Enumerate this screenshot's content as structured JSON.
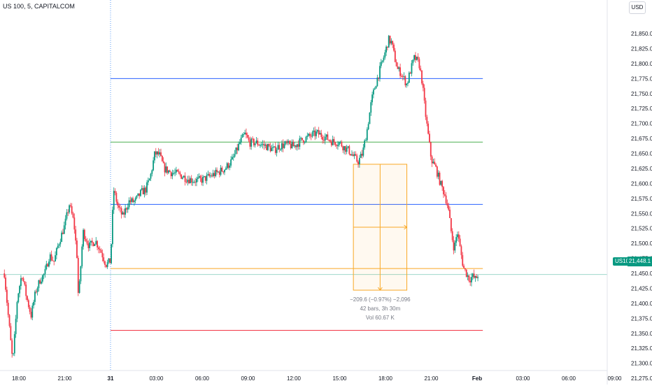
{
  "header": {
    "symbol": "US 100, 5, CAPITALCOM",
    "currency": "USD"
  },
  "chart_data": {
    "type": "candlestick",
    "y_ticks": [
      "21,850.0",
      "21,825.0",
      "21,800.0",
      "21,775.0",
      "21,750.0",
      "21,725.0",
      "21,700.0",
      "21,675.0",
      "21,650.0",
      "21,625.0",
      "21,600.0",
      "21,575.0",
      "21,550.0",
      "21,525.0",
      "21,500.0",
      "21,475.0",
      "21,450.0",
      "21,425.0",
      "21,400.0",
      "21,375.0",
      "21,350.0",
      "21,325.0",
      "21,300.0",
      "21,275.0"
    ],
    "ylim": [
      21265,
      21870
    ],
    "x_ticks": [
      "18:00",
      "21:00",
      "31",
      "03:00",
      "06:00",
      "09:00",
      "12:00",
      "15:00",
      "18:00",
      "21:00",
      "Feb",
      "03:00",
      "06:00",
      "09:00"
    ],
    "bold_x_ticks": [
      "31",
      "Feb"
    ],
    "x_hours": [
      18,
      21,
      24,
      27,
      30,
      33,
      36,
      39,
      42,
      45,
      48,
      51,
      54,
      57
    ],
    "session_separator_hour": 24,
    "horizontal_lines": [
      {
        "price": 21775,
        "color": "#2962ff"
      },
      {
        "price": 21669,
        "color": "#4caf50"
      },
      {
        "price": 21565,
        "color": "#2962ff"
      },
      {
        "price": 21458,
        "color": "#f9a825"
      },
      {
        "price": 21355,
        "color": "#f23645"
      }
    ],
    "last_price": {
      "symbol": "US100",
      "value": "21,448.1",
      "price": 21448.1,
      "color": "#089981"
    },
    "up_color": "#089981",
    "down_color": "#f23645",
    "measure_tool": {
      "color": "#f9a825",
      "start_hour": 39.9,
      "end_hour": 43.4,
      "high_price": 21632,
      "low_price": 21422,
      "lines": [
        "−209.6 (−0.97%) −2,096",
        "42 bars, 3h 30m",
        "Vol 60.67 K"
      ]
    },
    "price_path": [
      [
        17.05,
        21450
      ],
      [
        17.3,
        21380
      ],
      [
        17.6,
        21300
      ],
      [
        17.9,
        21410
      ],
      [
        18.2,
        21450
      ],
      [
        18.5,
        21410
      ],
      [
        18.8,
        21380
      ],
      [
        19.1,
        21420
      ],
      [
        19.4,
        21440
      ],
      [
        19.7,
        21450
      ],
      [
        20.0,
        21480
      ],
      [
        20.3,
        21470
      ],
      [
        20.6,
        21500
      ],
      [
        21.0,
        21530
      ],
      [
        21.3,
        21565
      ],
      [
        21.6,
        21535
      ],
      [
        21.8,
        21480
      ],
      [
        21.9,
        21405
      ],
      [
        22.2,
        21520
      ],
      [
        22.6,
        21495
      ],
      [
        23.0,
        21505
      ],
      [
        23.4,
        21485
      ],
      [
        23.7,
        21465
      ],
      [
        24.0,
        21470
      ],
      [
        24.2,
        21590
      ],
      [
        24.5,
        21560
      ],
      [
        24.8,
        21545
      ],
      [
        25.2,
        21570
      ],
      [
        25.6,
        21570
      ],
      [
        26.0,
        21585
      ],
      [
        26.3,
        21590
      ],
      [
        26.6,
        21610
      ],
      [
        26.9,
        21650
      ],
      [
        27.2,
        21648
      ],
      [
        27.5,
        21625
      ],
      [
        28.0,
        21618
      ],
      [
        28.5,
        21615
      ],
      [
        29.0,
        21608
      ],
      [
        29.5,
        21605
      ],
      [
        30.0,
        21606
      ],
      [
        30.5,
        21612
      ],
      [
        31.0,
        21618
      ],
      [
        31.5,
        21625
      ],
      [
        32.0,
        21640
      ],
      [
        32.5,
        21670
      ],
      [
        32.8,
        21682
      ],
      [
        33.1,
        21668
      ],
      [
        33.5,
        21668
      ],
      [
        34.0,
        21664
      ],
      [
        34.4,
        21660
      ],
      [
        34.7,
        21655
      ],
      [
        35.0,
        21662
      ],
      [
        35.5,
        21665
      ],
      [
        36.0,
        21662
      ],
      [
        36.5,
        21672
      ],
      [
        37.0,
        21678
      ],
      [
        37.5,
        21684
      ],
      [
        38.0,
        21678
      ],
      [
        38.5,
        21670
      ],
      [
        39.0,
        21668
      ],
      [
        39.3,
        21660
      ],
      [
        39.6,
        21655
      ],
      [
        39.9,
        21645
      ],
      [
        40.2,
        21636
      ],
      [
        40.5,
        21650
      ],
      [
        40.8,
        21690
      ],
      [
        41.1,
        21740
      ],
      [
        41.4,
        21770
      ],
      [
        41.7,
        21795
      ],
      [
        42.0,
        21820
      ],
      [
        42.2,
        21840
      ],
      [
        42.4,
        21835
      ],
      [
        42.6,
        21810
      ],
      [
        42.8,
        21790
      ],
      [
        43.0,
        21785
      ],
      [
        43.2,
        21775
      ],
      [
        43.4,
        21765
      ],
      [
        43.6,
        21785
      ],
      [
        43.9,
        21810
      ],
      [
        44.2,
        21800
      ],
      [
        44.4,
        21770
      ],
      [
        44.6,
        21720
      ],
      [
        44.8,
        21680
      ],
      [
        45.0,
        21640
      ],
      [
        45.3,
        21625
      ],
      [
        45.6,
        21600
      ],
      [
        45.9,
        21580
      ],
      [
        46.1,
        21560
      ],
      [
        46.3,
        21520
      ],
      [
        46.5,
        21490
      ],
      [
        46.7,
        21520
      ],
      [
        46.9,
        21490
      ],
      [
        47.1,
        21460
      ],
      [
        47.3,
        21450
      ],
      [
        47.5,
        21440
      ],
      [
        47.7,
        21445
      ],
      [
        47.9,
        21440
      ],
      [
        48.1,
        21450
      ]
    ]
  }
}
